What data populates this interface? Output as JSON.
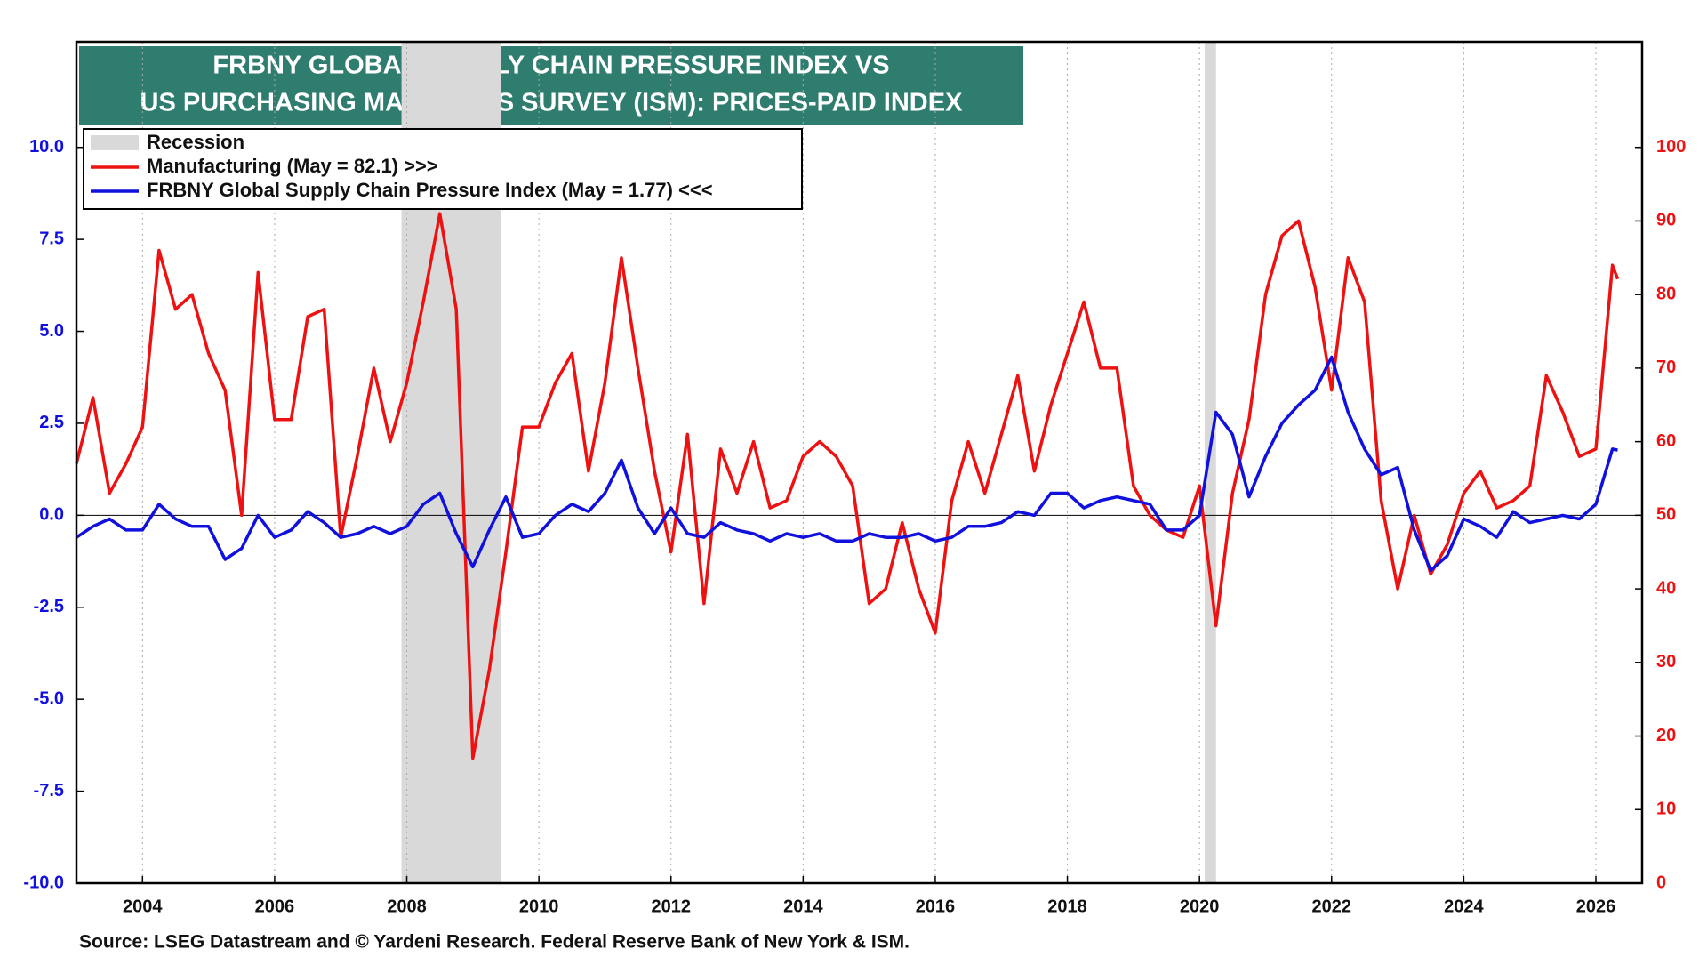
{
  "chart_data": {
    "type": "line",
    "title": [
      "FRBNY GLOBAL SUPPLY CHAIN PRESSURE INDEX VS",
      "US PURCHASING MANAGERS SURVEY (ISM): PRICES-PAID INDEX"
    ],
    "source": "Source: LSEG Datastream and © Yardeni Research. Federal Reserve Bank of New York & ISM.",
    "recession_label": "Recession",
    "recession_color": "#d9d9d9",
    "recessions": [
      [
        2007.92,
        2009.42
      ],
      [
        2020.08,
        2020.25
      ]
    ],
    "x": [
      2003,
      2003.25,
      2003.5,
      2003.75,
      2004,
      2004.25,
      2004.5,
      2004.75,
      2005,
      2005.25,
      2005.5,
      2005.75,
      2006,
      2006.25,
      2006.5,
      2006.75,
      2007,
      2007.25,
      2007.5,
      2007.75,
      2008,
      2008.25,
      2008.5,
      2008.75,
      2009,
      2009.25,
      2009.5,
      2009.75,
      2010,
      2010.25,
      2010.5,
      2010.75,
      2011,
      2011.25,
      2011.5,
      2011.75,
      2012,
      2012.25,
      2012.5,
      2012.75,
      2013,
      2013.25,
      2013.5,
      2013.75,
      2014,
      2014.25,
      2014.5,
      2014.75,
      2015,
      2015.25,
      2015.5,
      2015.75,
      2016,
      2016.25,
      2016.5,
      2016.75,
      2017,
      2017.25,
      2017.5,
      2017.75,
      2018,
      2018.25,
      2018.5,
      2018.75,
      2019,
      2019.25,
      2019.5,
      2019.75,
      2020,
      2020.25,
      2020.5,
      2020.75,
      2021,
      2021.25,
      2021.5,
      2021.75,
      2022,
      2022.25,
      2022.5,
      2022.75,
      2023,
      2023.25,
      2023.5,
      2023.75,
      2024,
      2024.25,
      2024.5,
      2024.75,
      2025,
      2025.25,
      2025.5,
      2025.75,
      2026,
      2026.25,
      2026.33
    ],
    "series": [
      {
        "name": "Manufacturing (May = 82.1) >>>",
        "color": "#ee1111",
        "axis": "y2",
        "values": [
          57,
          66,
          53,
          57,
          62,
          86,
          78,
          80,
          72,
          67,
          50,
          83,
          63,
          63,
          77,
          78,
          47,
          58,
          70,
          60,
          68,
          79,
          91,
          78,
          17,
          29,
          45,
          62,
          62,
          68,
          72,
          56,
          68,
          85,
          70,
          56,
          45,
          61,
          38,
          59,
          53,
          60,
          51,
          52,
          58,
          60,
          58,
          54,
          38,
          40,
          49,
          40,
          34,
          52,
          60,
          53,
          61,
          69,
          56,
          65,
          72,
          79,
          70,
          70,
          54,
          50,
          48,
          47,
          54,
          35,
          53,
          63,
          80,
          88,
          90,
          81,
          67,
          85,
          79,
          52,
          40,
          50,
          42,
          46,
          53,
          56,
          51,
          52,
          54,
          69,
          64,
          58,
          59,
          84,
          82.1
        ]
      },
      {
        "name": "FRBNY Global Supply Chain Pressure Index (May = 1.77) <<<",
        "color": "#1111dd",
        "axis": "y",
        "values": [
          -0.6,
          -0.3,
          -0.1,
          -0.4,
          -0.4,
          0.3,
          -0.1,
          -0.3,
          -0.3,
          -1.2,
          -0.9,
          0,
          -0.6,
          -0.4,
          0.1,
          -0.2,
          -0.6,
          -0.5,
          -0.3,
          -0.5,
          -0.3,
          0.3,
          0.6,
          -0.5,
          -1.4,
          -0.4,
          0.5,
          -0.6,
          -0.5,
          0,
          0.3,
          0.1,
          0.6,
          1.5,
          0.2,
          -0.5,
          0.2,
          -0.5,
          -0.6,
          -0.2,
          -0.4,
          -0.5,
          -0.7,
          -0.5,
          -0.6,
          -0.5,
          -0.7,
          -0.7,
          -0.5,
          -0.6,
          -0.6,
          -0.5,
          -0.7,
          -0.6,
          -0.3,
          -0.3,
          -0.2,
          0.1,
          0,
          0.6,
          0.6,
          0.2,
          0.4,
          0.5,
          0.4,
          0.3,
          -0.4,
          -0.4,
          0,
          2.8,
          2.2,
          0.5,
          1.6,
          2.5,
          3.0,
          3.4,
          4.3,
          2.8,
          1.8,
          1.1,
          1.3,
          -0.4,
          -1.5,
          -1.1,
          -0.1,
          -0.3,
          -0.6,
          0.1,
          -0.2,
          -0.1,
          0,
          -0.1,
          0.3,
          1.8,
          1.77
        ]
      }
    ],
    "xlim": [
      2003,
      2026.7
    ],
    "xticks": [
      2004,
      2006,
      2008,
      2010,
      2012,
      2014,
      2016,
      2018,
      2020,
      2022,
      2024,
      2026
    ],
    "ylim": [
      -10,
      12.87
    ],
    "yticks": [
      {
        "value": -10,
        "label": "-10.0"
      },
      -7.5,
      {
        "value": -5,
        "label": "-5.0"
      },
      -2.5,
      {
        "value": 0,
        "label": "0.0"
      },
      2.5,
      {
        "value": 5,
        "label": "5.0"
      },
      7.5,
      {
        "value": 10,
        "label": "10.0"
      }
    ],
    "y2lim": [
      0,
      114.35
    ],
    "y2ticks": [
      0,
      10,
      20,
      30,
      40,
      50,
      60,
      70,
      80,
      90,
      100
    ],
    "hline": 0,
    "grid": "x",
    "title_color": "#2e7d6e"
  }
}
